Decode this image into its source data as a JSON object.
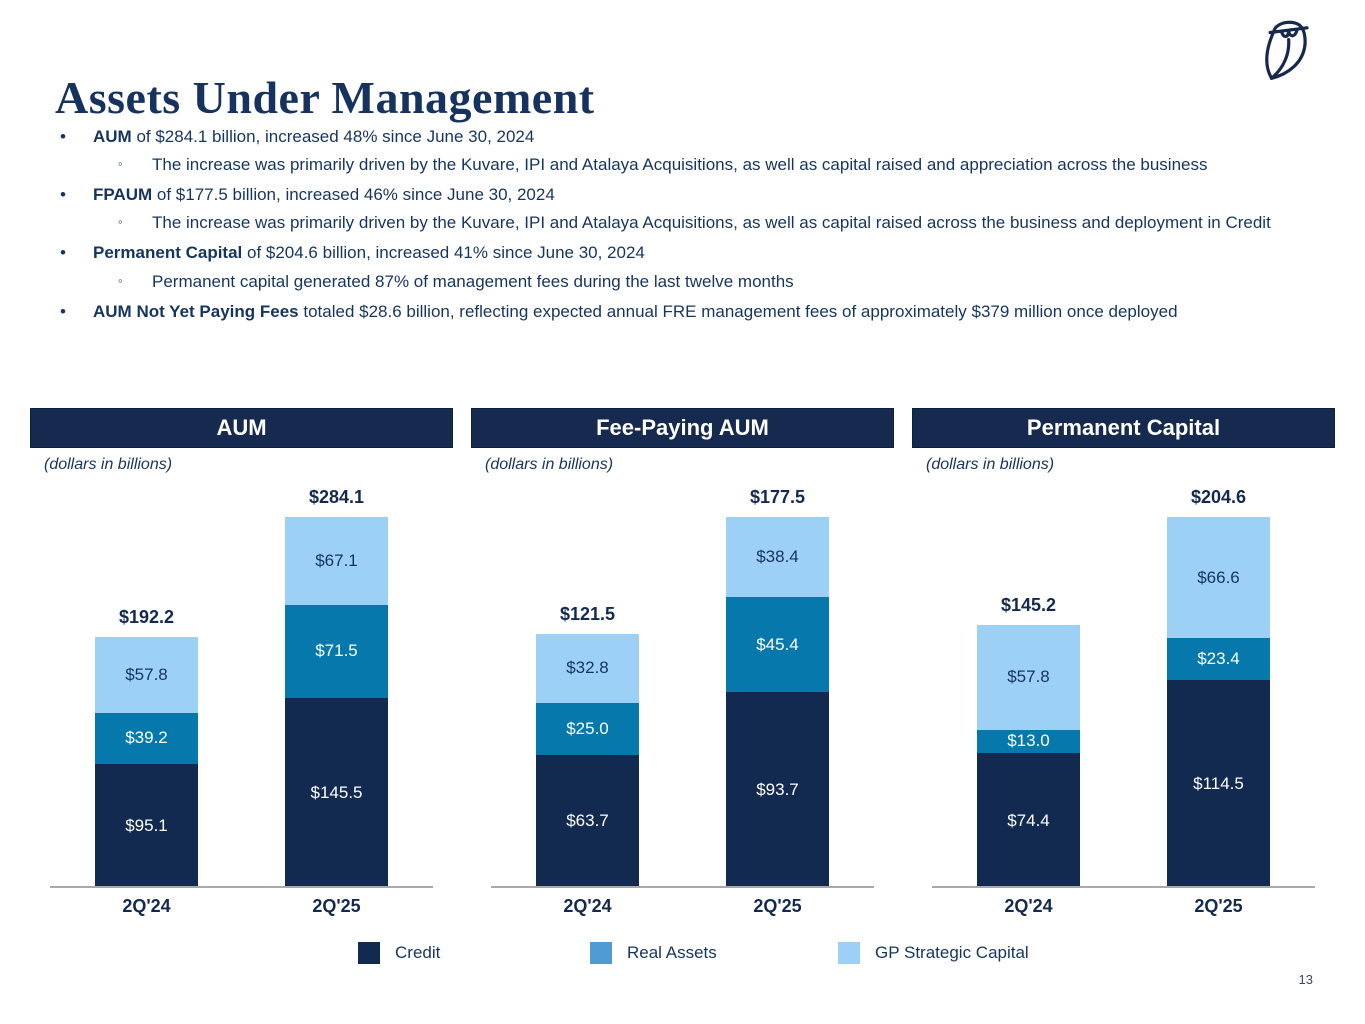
{
  "slide": {
    "title": "Assets Under Management",
    "page_number": "13"
  },
  "bullets": [
    {
      "level": 1,
      "marker": "•",
      "bold": "AUM",
      "text": " of $284.1 billion, increased 48% since June 30, 2024"
    },
    {
      "level": 2,
      "marker": "◦",
      "bold": "",
      "text": "The increase was primarily driven by the Kuvare, IPI and Atalaya Acquisitions, as well as capital raised and appreciation across the business"
    },
    {
      "level": 1,
      "marker": "•",
      "bold": "FPAUM",
      "text": " of $177.5 billion, increased 46% since June 30, 2024"
    },
    {
      "level": 2,
      "marker": "◦",
      "bold": "",
      "text": "The increase was primarily driven by the Kuvare, IPI and Atalaya Acquisitions, as well as capital raised across the business and deployment in Credit"
    },
    {
      "level": 1,
      "marker": "•",
      "bold": "Permanent Capital",
      "text": " of $204.6 billion, increased 41% since June 30, 2024"
    },
    {
      "level": 2,
      "marker": "◦",
      "bold": "",
      "text": "Permanent capital generated 87% of management fees during the last twelve months"
    },
    {
      "level": 1,
      "marker": "•",
      "bold": "AUM Not Yet Paying Fees",
      "text": " totaled $28.6 billion, reflecting expected annual FRE management fees of approximately $379 million once deployed"
    }
  ],
  "chart_data": [
    {
      "type": "bar",
      "stacked": true,
      "title": "AUM",
      "subtitle": "(dollars in billions)",
      "categories": [
        "2Q'24",
        "2Q'25"
      ],
      "series": [
        {
          "name": "Credit",
          "values": [
            95.1,
            145.5
          ],
          "labels": [
            "$95.1",
            "$145.5"
          ],
          "color": "#122A4F",
          "label_color": "#FFFFFF"
        },
        {
          "name": "Real Assets",
          "values": [
            39.2,
            71.5
          ],
          "labels": [
            "$39.2",
            "$71.5"
          ],
          "color": "#0778AB",
          "label_color": "#FFFFFF"
        },
        {
          "name": "GP Strategic Capital",
          "values": [
            57.8,
            67.1
          ],
          "labels": [
            "$57.8",
            "$67.1"
          ],
          "color": "#9CD1F5",
          "label_color": "#16335F"
        }
      ],
      "totals": [
        "$192.2",
        "$284.1"
      ],
      "total_values": [
        192.2,
        284.1
      ],
      "ylim": [
        0,
        284.1
      ],
      "grid": false,
      "legend_position": "bottom"
    },
    {
      "type": "bar",
      "stacked": true,
      "title": "Fee-Paying AUM",
      "subtitle": "(dollars in billions)",
      "categories": [
        "2Q'24",
        "2Q'25"
      ],
      "series": [
        {
          "name": "Credit",
          "values": [
            63.7,
            93.7
          ],
          "labels": [
            "$63.7",
            "$93.7"
          ],
          "color": "#122A4F",
          "label_color": "#FFFFFF"
        },
        {
          "name": "Real Assets",
          "values": [
            25.0,
            45.4
          ],
          "labels": [
            "$25.0",
            "$45.4"
          ],
          "color": "#0778AB",
          "label_color": "#FFFFFF"
        },
        {
          "name": "GP Strategic Capital",
          "values": [
            32.8,
            38.4
          ],
          "labels": [
            "$32.8",
            "$38.4"
          ],
          "color": "#9CD1F5",
          "label_color": "#16335F"
        }
      ],
      "totals": [
        "$121.5",
        "$177.5"
      ],
      "total_values": [
        121.5,
        177.5
      ],
      "ylim": [
        0,
        177.5
      ],
      "grid": false,
      "legend_position": "bottom"
    },
    {
      "type": "bar",
      "stacked": true,
      "title": "Permanent Capital",
      "subtitle": "(dollars in billions)",
      "categories": [
        "2Q'24",
        "2Q'25"
      ],
      "series": [
        {
          "name": "Credit",
          "values": [
            74.4,
            114.5
          ],
          "labels": [
            "$74.4",
            "$114.5"
          ],
          "color": "#122A4F",
          "label_color": "#FFFFFF"
        },
        {
          "name": "Real Assets",
          "values": [
            13.0,
            23.4
          ],
          "labels": [
            "$13.0",
            "$23.4"
          ],
          "color": "#0778AB",
          "label_color": "#FFFFFF"
        },
        {
          "name": "GP Strategic Capital",
          "values": [
            57.8,
            66.6
          ],
          "labels": [
            "$57.8",
            "$66.6"
          ],
          "color": "#9CD1F5",
          "label_color": "#16335F"
        }
      ],
      "totals": [
        "$145.2",
        "$204.6"
      ],
      "total_values": [
        145.2,
        204.6
      ],
      "ylim": [
        0,
        204.6
      ],
      "grid": false,
      "legend_position": "bottom"
    }
  ],
  "legend": {
    "items": [
      {
        "label": "Credit",
        "color": "#122A4F"
      },
      {
        "label": "Real Assets",
        "color": "#4F9BD4"
      },
      {
        "label": "GP Strategic Capital",
        "color": "#9CD1F5"
      }
    ]
  },
  "colors": {
    "header_bg": "#152A4E",
    "title_text": "#16335F",
    "axis_line": "#A9A9A9"
  }
}
